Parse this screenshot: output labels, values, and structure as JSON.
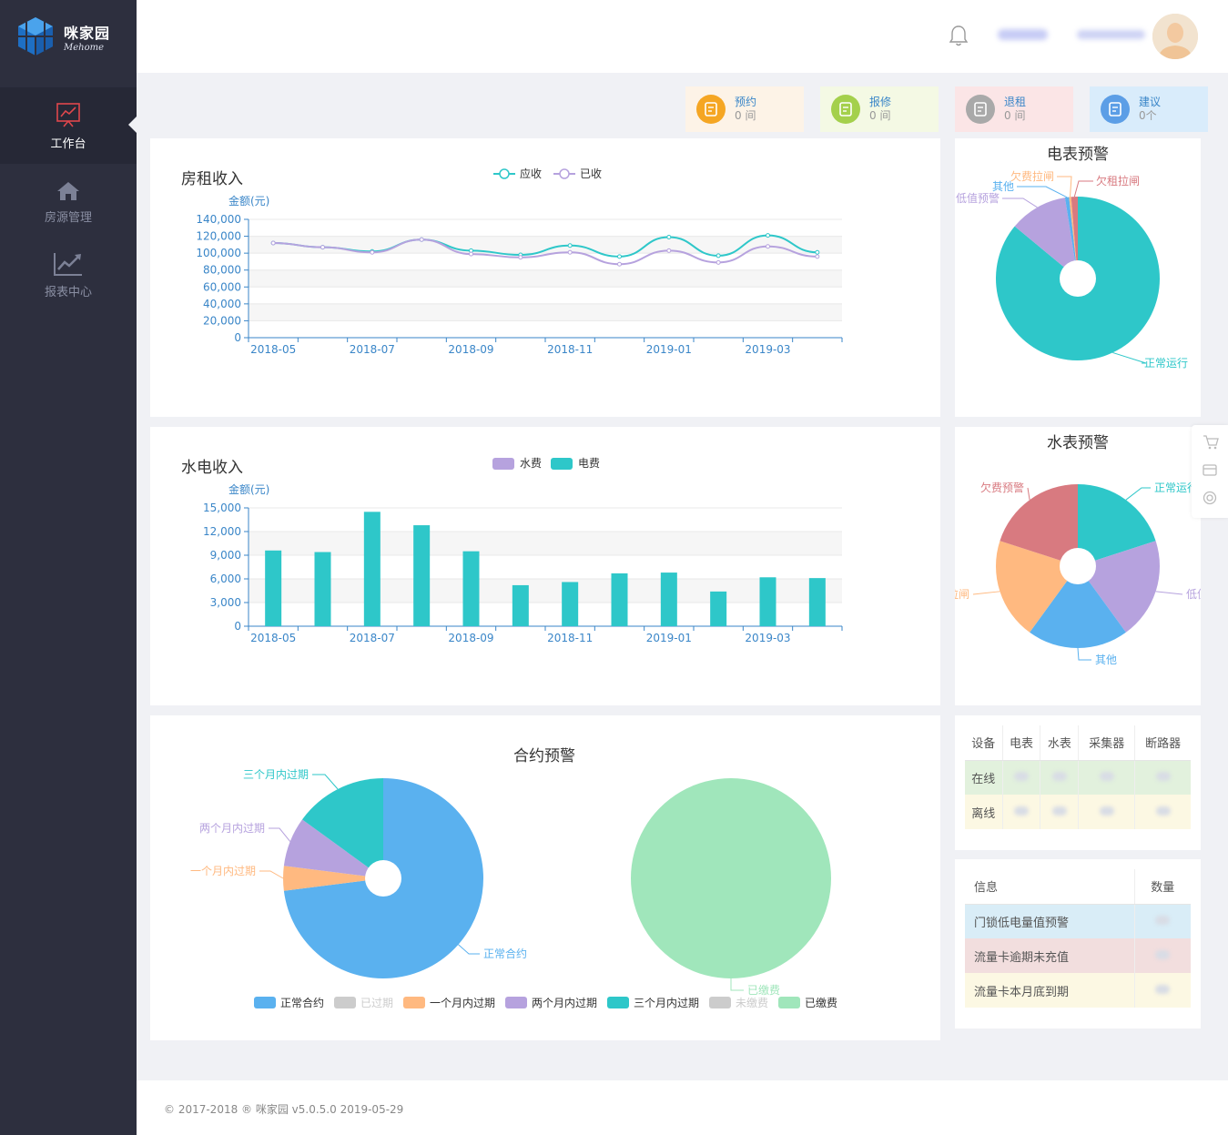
{
  "app": {
    "name": "咪家园",
    "name_en": "Mehome"
  },
  "sidebar": {
    "items": [
      {
        "label": "工作台",
        "icon": "dashboard-chart-icon",
        "active": true
      },
      {
        "label": "房源管理",
        "icon": "home-icon",
        "active": false
      },
      {
        "label": "报表中心",
        "icon": "trend-chart-icon",
        "active": false
      }
    ]
  },
  "header": {
    "icons": [
      "bell-icon",
      "avatar"
    ]
  },
  "stats": [
    {
      "label": "预约",
      "value": "0 间",
      "color": "#f5a623",
      "bg": "#fdf3e7",
      "icon": "clock-doc-icon"
    },
    {
      "label": "报修",
      "value": "0 间",
      "color": "#a4d04c",
      "bg": "#f4f9e4",
      "icon": "money-bag-icon"
    },
    {
      "label": "退租",
      "value": "0 间",
      "color": "#a9a9a9",
      "bg": "#fbe5e6",
      "icon": "house-x-icon"
    },
    {
      "label": "建议",
      "value": "0个",
      "color": "#5c9ee6",
      "bg": "#d9ecfb",
      "icon": "house-check-icon"
    }
  ],
  "rent_panel": {
    "title": "房租收入"
  },
  "utility_panel": {
    "title": "水电收入"
  },
  "contract_panel": {
    "title": "合约预警"
  },
  "meter_panel": {
    "title": "电表预警"
  },
  "water_panel": {
    "title": "水表预警"
  },
  "device_table": {
    "headers": [
      "设备",
      "电表",
      "水表",
      "采集器",
      "断路器"
    ],
    "rows": [
      {
        "label": "在线",
        "bg": "#e2f1dd"
      },
      {
        "label": "离线",
        "bg": "#fcf8e3"
      }
    ]
  },
  "info_table": {
    "headers": [
      "信息",
      "数量"
    ],
    "rows": [
      {
        "label": "门锁低电量值预警",
        "bg": "#d9edf7"
      },
      {
        "label": "流量卡逾期未充值",
        "bg": "#f2dede"
      },
      {
        "label": "流量卡本月底到期",
        "bg": "#fcf8e3"
      }
    ]
  },
  "footer": {
    "text": "© 2017-2018 ® 咪家园 v5.0.5.0 2019-05-29"
  },
  "chart_data": [
    {
      "type": "line",
      "title": "房租收入",
      "ylabel": "金额(元)",
      "ylim": [
        0,
        140000
      ],
      "yticks": [
        "0",
        "20,000",
        "40,000",
        "60,000",
        "80,000",
        "100,000",
        "120,000",
        "140,000"
      ],
      "xticks": [
        "2018-05",
        "2018-07",
        "2018-09",
        "2018-11",
        "2019-01",
        "2019-03"
      ],
      "x": [
        "2018-05",
        "2018-06",
        "2018-07",
        "2018-08",
        "2018-09",
        "2018-10",
        "2018-11",
        "2018-12",
        "2019-01",
        "2019-02",
        "2019-03",
        "2019-04"
      ],
      "series": [
        {
          "name": "应收",
          "color": "#2ec7c9",
          "values": [
            112000,
            107000,
            102000,
            116000,
            103000,
            98000,
            109000,
            96000,
            119000,
            97000,
            121000,
            101000
          ]
        },
        {
          "name": "已收",
          "color": "#b6a2de",
          "values": [
            112000,
            107000,
            101000,
            116000,
            99000,
            95000,
            101000,
            87000,
            103000,
            89000,
            108000,
            96000
          ]
        }
      ]
    },
    {
      "type": "bar",
      "title": "水电收入",
      "ylabel": "金额(元)",
      "ylim": [
        0,
        15000
      ],
      "yticks": [
        "0",
        "3,000",
        "6,000",
        "9,000",
        "12,000",
        "15,000"
      ],
      "xticks": [
        "2018-05",
        "2018-07",
        "2018-09",
        "2018-11",
        "2019-01",
        "2019-03"
      ],
      "x": [
        "2018-05",
        "2018-06",
        "2018-07",
        "2018-08",
        "2018-09",
        "2018-10",
        "2018-11",
        "2018-12",
        "2019-01",
        "2019-02",
        "2019-03",
        "2019-04"
      ],
      "series": [
        {
          "name": "水费",
          "color": "#b6a2de",
          "values": [
            0,
            0,
            0,
            0,
            0,
            0,
            0,
            0,
            0,
            0,
            0,
            0
          ]
        },
        {
          "name": "电费",
          "color": "#2ec7c9",
          "values": [
            9600,
            9400,
            14500,
            12800,
            9500,
            5200,
            5600,
            6700,
            6800,
            4400,
            6200,
            6100
          ]
        }
      ]
    },
    {
      "type": "pie",
      "title": "电表预警",
      "slices": [
        {
          "name": "正常运行",
          "value": 86,
          "color": "#2ec7c9"
        },
        {
          "name": "低值预警",
          "value": 11.5,
          "color": "#b6a2de"
        },
        {
          "name": "其他",
          "value": 0.8,
          "color": "#5ab1ef"
        },
        {
          "name": "欠费拉闸",
          "value": 0.4,
          "color": "#ffb980"
        },
        {
          "name": "欠租拉闸",
          "value": 1.3,
          "color": "#d87a80"
        }
      ]
    },
    {
      "type": "pie",
      "title": "水表预警",
      "slices": [
        {
          "name": "正常运行",
          "value": 20,
          "color": "#2ec7c9"
        },
        {
          "name": "低值预警",
          "value": 20,
          "color": "#b6a2de"
        },
        {
          "name": "其他",
          "value": 20,
          "color": "#5ab1ef"
        },
        {
          "name": "欠费拉闸",
          "value": 20,
          "color": "#ffb980"
        },
        {
          "name": "欠费预警",
          "value": 20,
          "color": "#d87a80"
        }
      ]
    },
    {
      "type": "pie",
      "title": "合约预警",
      "legend": [
        {
          "name": "正常合约",
          "color": "#5ab1ef"
        },
        {
          "name": "已过期",
          "color": "#cccccc"
        },
        {
          "name": "一个月内过期",
          "color": "#ffb980"
        },
        {
          "name": "两个月内过期",
          "color": "#b6a2de"
        },
        {
          "name": "三个月内过期",
          "color": "#2ec7c9"
        },
        {
          "name": "未缴费",
          "color": "#cccccc"
        },
        {
          "name": "已缴费",
          "color": "#a0e6bb"
        }
      ],
      "slices": [
        {
          "name": "正常合约",
          "value": 73,
          "color": "#5ab1ef"
        },
        {
          "name": "一个月内过期",
          "value": 4,
          "color": "#ffb980"
        },
        {
          "name": "两个月内过期",
          "value": 8,
          "color": "#b6a2de"
        },
        {
          "name": "三个月内过期",
          "value": 15,
          "color": "#2ec7c9"
        }
      ],
      "payment_slices": [
        {
          "name": "已缴费",
          "value": 100,
          "color": "#a0e6bb"
        }
      ]
    }
  ]
}
